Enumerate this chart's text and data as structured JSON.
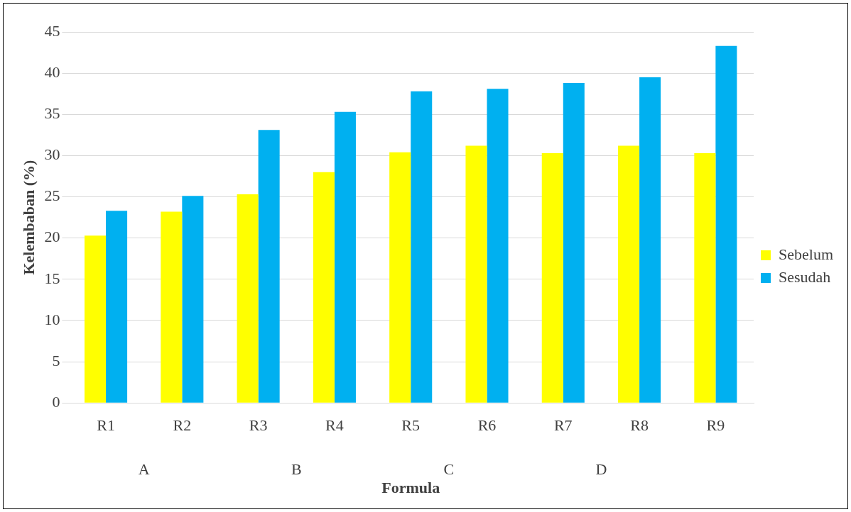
{
  "chart_data": {
    "type": "bar",
    "xlabel": "Formula",
    "ylabel": "Kelembaban (%)",
    "categories": [
      "R1",
      "R2",
      "R3",
      "R4",
      "R5",
      "R6",
      "R7",
      "R8",
      "R9"
    ],
    "series": [
      {
        "name": "Sebelum",
        "color": "#ffff00",
        "values": [
          20.3,
          23.2,
          25.3,
          28,
          30.4,
          31.2,
          30.3,
          31.2,
          30.3
        ]
      },
      {
        "name": "Sesudah",
        "color": "#00b0f0",
        "values": [
          23.3,
          25.1,
          33.1,
          35.3,
          37.8,
          38.1,
          38.8,
          39.5,
          43.3
        ]
      }
    ],
    "annotations": [
      "A",
      "B",
      "C",
      "D"
    ],
    "ylim": [
      0,
      45
    ],
    "yticks": [
      0,
      5,
      10,
      15,
      20,
      25,
      30,
      35,
      40,
      45
    ],
    "grid": "y",
    "legend": "right"
  }
}
